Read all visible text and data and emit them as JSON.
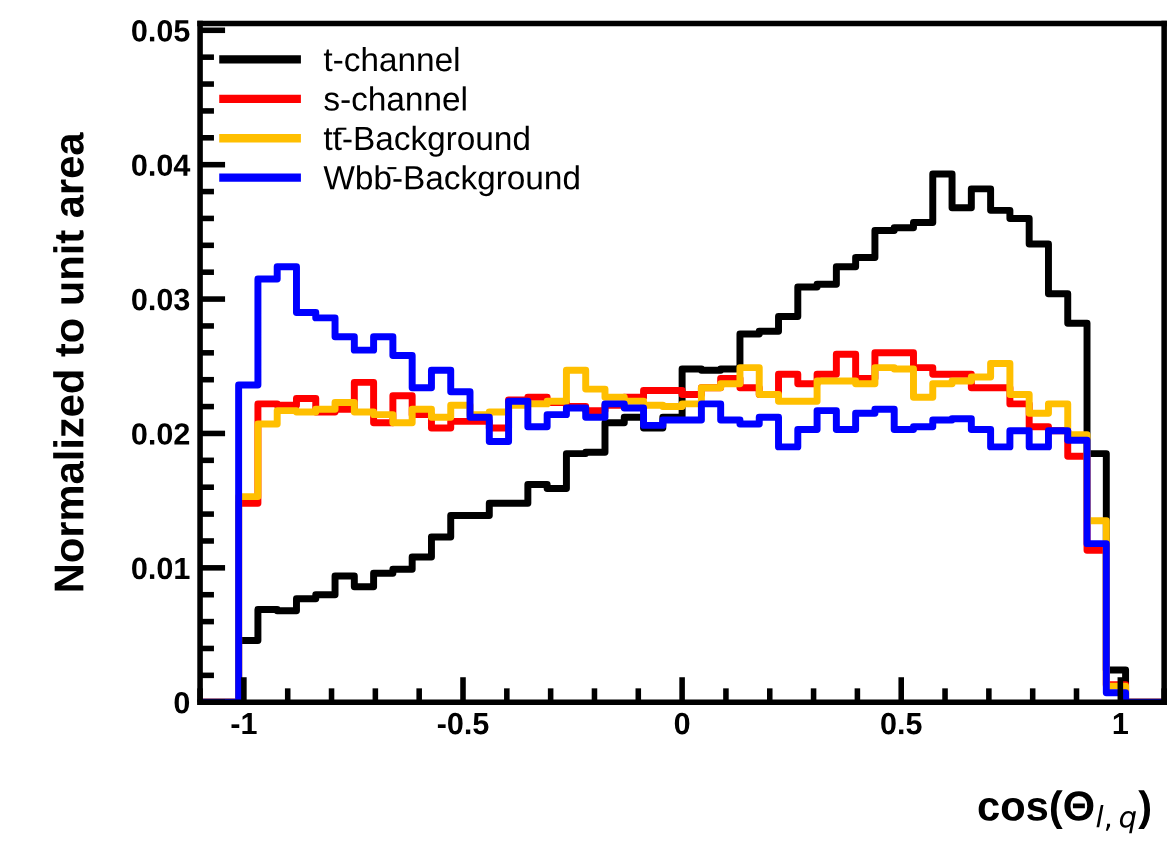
{
  "chart_data": {
    "type": "histogram",
    "ylabel": "Normalized to unit area",
    "xlabel": "cos(Θ$_{l,q}$)",
    "bins": [
      -1.1,
      -1.056,
      -1.012,
      -0.968,
      -0.924,
      -0.88,
      -0.836,
      -0.792,
      -0.748,
      -0.704,
      -0.66,
      -0.616,
      -0.572,
      -0.528,
      -0.484,
      -0.44,
      -0.396,
      -0.352,
      -0.308,
      -0.264,
      -0.22,
      -0.176,
      -0.132,
      -0.088,
      -0.044,
      0,
      0.044,
      0.088,
      0.132,
      0.176,
      0.22,
      0.264,
      0.308,
      0.352,
      0.396,
      0.44,
      0.484,
      0.528,
      0.572,
      0.616,
      0.66,
      0.704,
      0.748,
      0.792,
      0.836,
      0.88,
      0.924,
      0.968,
      1.012,
      1.056,
      1.1
    ],
    "series": [
      {
        "name": "t-channel",
        "color": "#000000",
        "values": [
          0,
          0,
          0.0046,
          0.0069,
          0.0068,
          0.0077,
          0.008,
          0.0094,
          0.0086,
          0.0096,
          0.0099,
          0.0108,
          0.0123,
          0.0139,
          0.0139,
          0.0148,
          0.0148,
          0.0162,
          0.0159,
          0.0185,
          0.0186,
          0.0208,
          0.0212,
          0.0204,
          0.0212,
          0.0248,
          0.0247,
          0.0248,
          0.0274,
          0.0276,
          0.0287,
          0.0309,
          0.0311,
          0.0324,
          0.0331,
          0.0351,
          0.0353,
          0.0357,
          0.0393,
          0.0368,
          0.0382,
          0.0366,
          0.036,
          0.0341,
          0.0304,
          0.0282,
          0.0185,
          0.0024,
          0,
          0
        ]
      },
      {
        "name": "s-channel",
        "color": "#ff0000",
        "values": [
          0,
          0,
          0.0148,
          0.0222,
          0.0221,
          0.0226,
          0.0216,
          0.0218,
          0.0238,
          0.0208,
          0.0228,
          0.0214,
          0.0204,
          0.0209,
          0.0209,
          0.0204,
          0.0225,
          0.0227,
          0.0223,
          0.022,
          0.0217,
          0.0221,
          0.0227,
          0.0232,
          0.0232,
          0.0229,
          0.0234,
          0.0241,
          0.0234,
          0.0229,
          0.0244,
          0.0237,
          0.0244,
          0.0259,
          0.0241,
          0.026,
          0.026,
          0.0249,
          0.0244,
          0.0244,
          0.0234,
          0.0234,
          0.0222,
          0.0205,
          0.0202,
          0.0183,
          0.0113,
          0.0013,
          0,
          0
        ]
      },
      {
        "name": "tt̄-Background",
        "color": "#ffbf00",
        "values": [
          0,
          0,
          0.0153,
          0.0207,
          0.0217,
          0.0216,
          0.0218,
          0.0223,
          0.0216,
          0.0214,
          0.0208,
          0.0218,
          0.0212,
          0.0221,
          0.0214,
          0.0216,
          0.0221,
          0.0222,
          0.0224,
          0.0247,
          0.0233,
          0.0227,
          0.0224,
          0.0221,
          0.022,
          0.0222,
          0.0234,
          0.0237,
          0.0249,
          0.0229,
          0.0224,
          0.0224,
          0.0239,
          0.0239,
          0.0237,
          0.0249,
          0.0248,
          0.0227,
          0.0237,
          0.0239,
          0.0242,
          0.0252,
          0.0229,
          0.0215,
          0.0222,
          0.0199,
          0.0135,
          0.0012,
          0,
          0
        ]
      },
      {
        "name": "Wbb̄-Background",
        "color": "#0000ff",
        "values": [
          0,
          0,
          0.0236,
          0.0315,
          0.0324,
          0.029,
          0.0286,
          0.0272,
          0.0262,
          0.0272,
          0.0258,
          0.0234,
          0.0247,
          0.0231,
          0.0212,
          0.0194,
          0.0224,
          0.0205,
          0.0214,
          0.0219,
          0.0212,
          0.0222,
          0.0219,
          0.0206,
          0.021,
          0.021,
          0.0222,
          0.021,
          0.0207,
          0.0212,
          0.019,
          0.0203,
          0.0217,
          0.0203,
          0.0215,
          0.0218,
          0.0203,
          0.0205,
          0.021,
          0.0211,
          0.0203,
          0.019,
          0.0202,
          0.019,
          0.0202,
          0.0195,
          0.0118,
          0.0007,
          0,
          0
        ]
      }
    ],
    "xlim": [
      -1.1,
      1.1
    ],
    "xticks": [
      -1,
      -0.5,
      0,
      0.5,
      1
    ],
    "ylim": [
      0,
      0.0505
    ],
    "yticks": [
      0,
      0.01,
      0.02,
      0.03,
      0.04,
      0.05
    ],
    "grid": false,
    "legend": "top left",
    "line_style": "solid"
  }
}
